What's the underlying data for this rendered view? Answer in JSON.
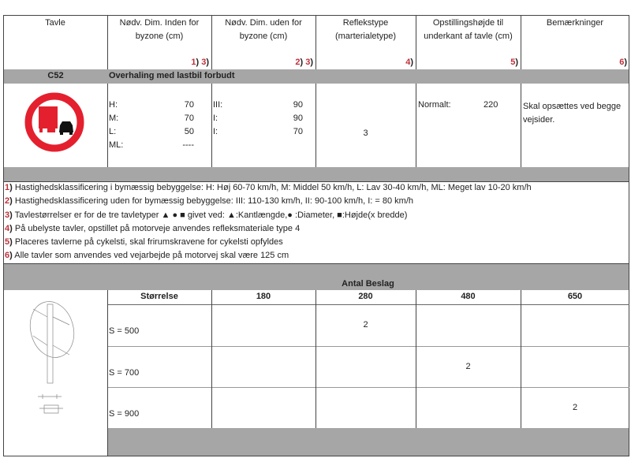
{
  "header": {
    "cols": [
      {
        "label": "Tavle",
        "note": ""
      },
      {
        "label": "Nødv. Dim. Inden for byzone (cm)",
        "note": [
          "1",
          ") ",
          "3",
          ")"
        ]
      },
      {
        "label": "Nødv. Dim. uden for byzone (cm)",
        "note": [
          "2",
          ") ",
          "3",
          ")"
        ]
      },
      {
        "label": "Reflekstype (marterialetype)",
        "note": [
          "4",
          ")"
        ]
      },
      {
        "label": "Opstillingshøjde til underkant af tavle (cm)",
        "note": [
          "5",
          ")"
        ]
      },
      {
        "label": "Bemærkninger",
        "note": [
          "6",
          ")"
        ]
      }
    ]
  },
  "sign": {
    "code": "C52",
    "title": "Overhaling med lastbil forbudt",
    "icon": "no-overtaking-by-trucks-sign",
    "colors": {
      "red": "#e4202e",
      "black": "#111111"
    },
    "inside": [
      {
        "k": "H:",
        "v": "70"
      },
      {
        "k": "M:",
        "v": "70"
      },
      {
        "k": "L:",
        "v": "50"
      },
      {
        "k": "ML:",
        "v": "----"
      }
    ],
    "outside": [
      {
        "k": "III:",
        "v": "90"
      },
      {
        "k": "I:",
        "v": "90"
      },
      {
        "k": "I:",
        "v": "70"
      }
    ],
    "reflex": "3",
    "height_label": "Normalt:",
    "height_value": "220",
    "remark": "Skal opsættes ved begge vejsider."
  },
  "notes": [
    {
      "n": "1",
      "text": "Hastighedsklassificering i bymæssig bebyggelse: H: Høj 60-70 km/h, M: Middel 50 km/h, L: Lav 30-40 km/h, ML: Meget lav 10-20 km/h"
    },
    {
      "n": "2",
      "text": "Hastighedsklassificering uden for bymæssig bebyggelse: III: 110-130 km/h, II: 90-100 km/h, I: = 80 km/h"
    },
    {
      "n": "3",
      "text": "Tavlestørrelser er for de tre tavletyper ▲ ● ■ givet ved: ▲:Kantlængde,● :Diameter, ■:Højde(x bredde)"
    },
    {
      "n": "4",
      "text": "På ubelyste tavler, opstillet på motorveje anvendes refleksmateriale type 4"
    },
    {
      "n": "5",
      "text": "Placeres tavlerne på cykelsti, skal frirumskravene for cykelsti opfyldes"
    },
    {
      "n": "6",
      "text": "Alle tavler som anvendes ved vejarbejde på motorvej skal være 125 cm"
    }
  ],
  "beslag": {
    "title": "Antal Beslag",
    "headers": [
      "Størrelse",
      "180",
      "280",
      "480",
      "650"
    ],
    "rows": [
      [
        "S = 500",
        "",
        "2",
        "",
        ""
      ],
      [
        "S = 700",
        "",
        "",
        "2",
        ""
      ],
      [
        "S = 900",
        "",
        "",
        "",
        "2"
      ]
    ]
  }
}
